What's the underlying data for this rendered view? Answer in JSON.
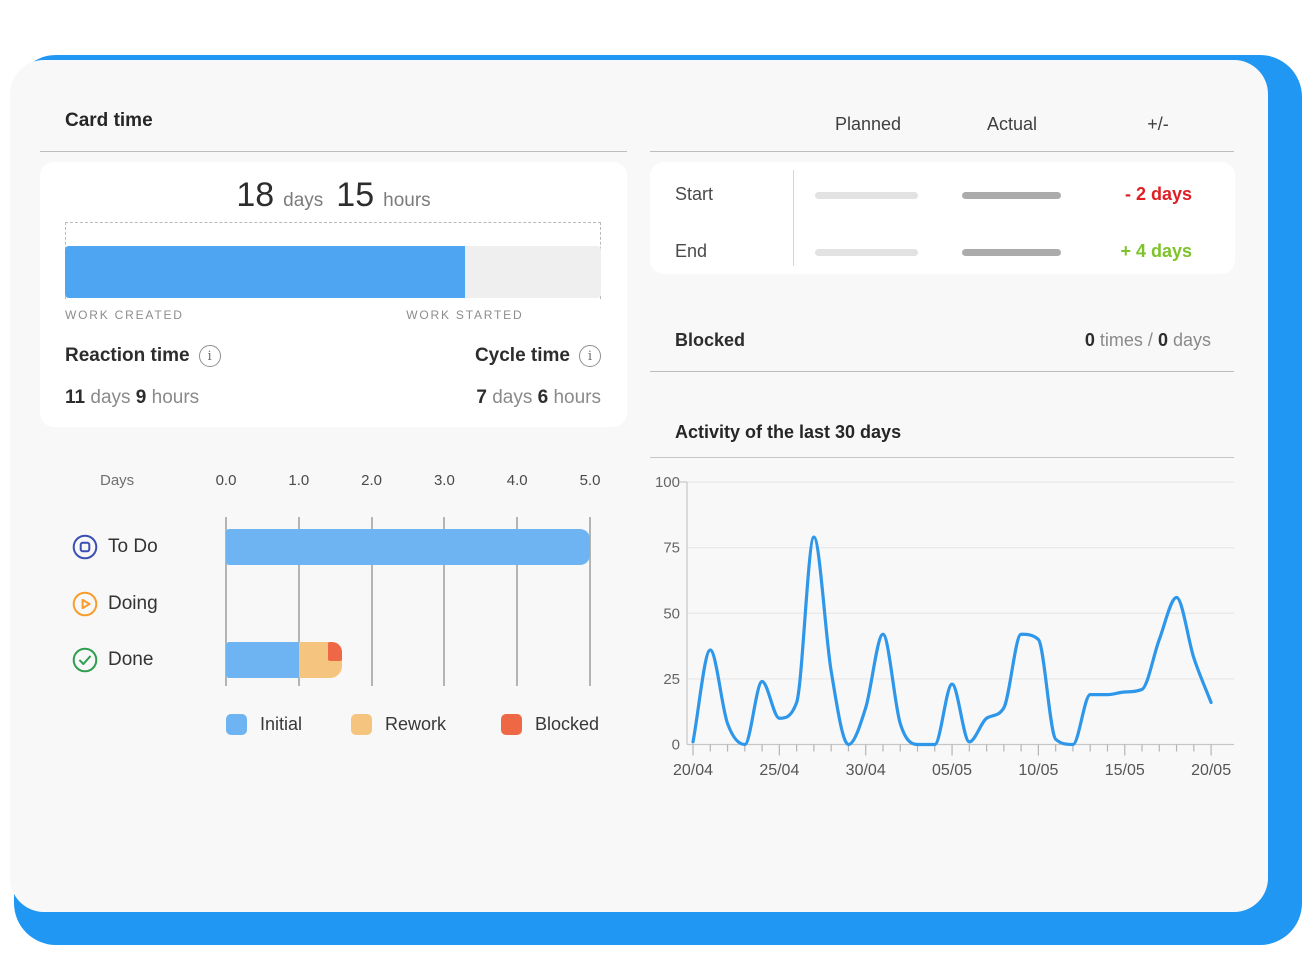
{
  "colors": {
    "frame_blue": "#1f97f3",
    "progress_fill": "#4ea5f1",
    "delta_negative_red": "#de1f26",
    "delta_positive_green": "#7ec32b",
    "todo_icon": "#3c50b4",
    "doing_icon": "#f79d2d",
    "done_icon": "#2f9e4e"
  },
  "card_time": {
    "title": "Card time",
    "total": {
      "days": "18",
      "days_unit": "days",
      "hours": "15",
      "hours_unit": "hours"
    },
    "progress_percent": 74.6,
    "work_created_label": "WORK CREATED",
    "work_started_label": "WORK STARTED",
    "reaction_time": {
      "label": "Reaction time",
      "days": "11",
      "days_unit": "days",
      "hours": "9",
      "hours_unit": "hours"
    },
    "cycle_time": {
      "label": "Cycle time",
      "days": "7",
      "days_unit": "days",
      "hours": "6",
      "hours_unit": "hours"
    }
  },
  "plan_table": {
    "headers": [
      "Planned",
      "Actual",
      "+/-"
    ],
    "rows": [
      {
        "label": "Start",
        "delta": "- 2 days",
        "delta_type": "negative"
      },
      {
        "label": "End",
        "delta": "+ 4 days",
        "delta_type": "positive"
      }
    ]
  },
  "blocked": {
    "label": "Blocked",
    "times_value": "0",
    "times_unit": "times",
    "separator": "/",
    "days_value": "0",
    "days_unit": "days"
  },
  "activity": {
    "title": "Activity of the last 30 days"
  },
  "chart_data": [
    {
      "type": "bar",
      "orientation": "horizontal",
      "axis_label": "Days",
      "x_tick_labels": [
        "0.0",
        "1.0",
        "2.0",
        "3.0",
        "4.0",
        "5.0"
      ],
      "xlim": [
        0,
        5
      ],
      "categories": [
        "To Do",
        "Doing",
        "Done"
      ],
      "category_icons": [
        "todo-square-icon",
        "doing-play-icon",
        "done-check-icon"
      ],
      "series": [
        {
          "name": "Initial",
          "color": "#6fb4f2",
          "values": [
            5.0,
            0,
            1.0
          ]
        },
        {
          "name": "Rework",
          "color": "#f5c47e",
          "values": [
            0,
            0,
            0.6
          ]
        },
        {
          "name": "Blocked",
          "color": "#ee6846",
          "values": [
            0,
            0,
            0.2
          ],
          "render": "corner-chip"
        }
      ],
      "legend_position": "bottom"
    },
    {
      "type": "line",
      "title": "Activity of the last 30 days",
      "x_tick_labels": [
        "20/04",
        "25/04",
        "30/04",
        "05/05",
        "10/05",
        "15/05",
        "20/05"
      ],
      "x_label_every": 5,
      "values": [
        1,
        36,
        8,
        0,
        24,
        10,
        16,
        79,
        28,
        0,
        14,
        42,
        8,
        0,
        0,
        23,
        1,
        10,
        14,
        42,
        40,
        2,
        0,
        19,
        19,
        20,
        21,
        40,
        56,
        33,
        16
      ],
      "ylim": [
        0,
        100
      ],
      "y_ticks": [
        0,
        25,
        50,
        75,
        100
      ],
      "line_color": "#2e97ea",
      "grid": true
    }
  ]
}
